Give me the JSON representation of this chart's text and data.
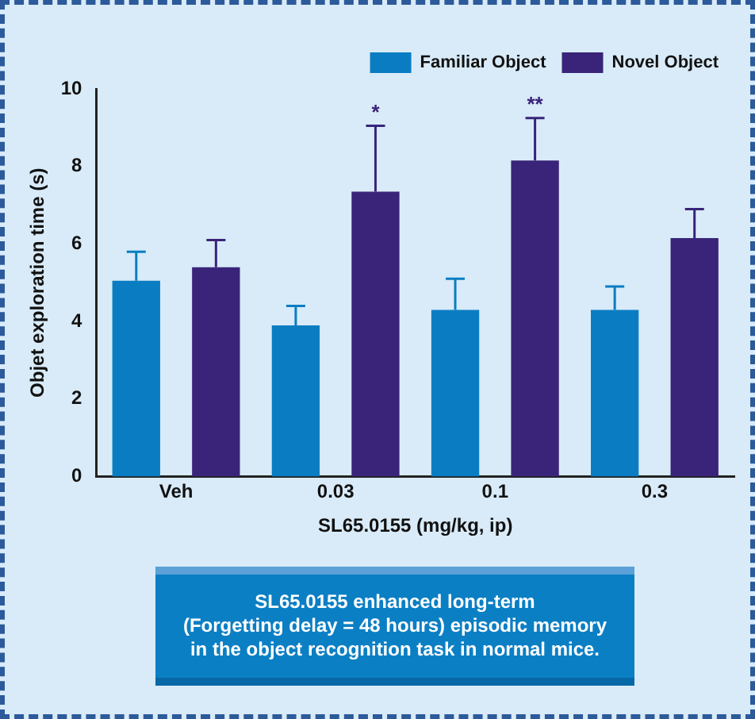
{
  "chart_data": {
    "type": "bar",
    "xlabel": "SL65.0155 (mg/kg, ip)",
    "ylabel": "Objet exploration time (s)",
    "categories": [
      "Veh",
      "0.03",
      "0.1",
      "0.3"
    ],
    "series": [
      {
        "name": "Familiar Object",
        "color": "#0a7dc2",
        "values": [
          5.05,
          3.9,
          4.3,
          4.3
        ],
        "errors": [
          [
            5.05,
            5.8
          ],
          [
            3.9,
            4.4
          ],
          [
            4.3,
            5.1
          ],
          [
            4.3,
            4.9
          ]
        ]
      },
      {
        "name": "Novel Object",
        "color": "#3a2479",
        "values": [
          5.4,
          7.35,
          8.15,
          6.15
        ],
        "errors": [
          [
            5.4,
            6.1
          ],
          [
            7.35,
            9.05
          ],
          [
            8.15,
            9.25
          ],
          [
            6.15,
            6.9
          ]
        ]
      }
    ],
    "ylim": [
      0,
      10
    ],
    "yticks": [
      0,
      2,
      4,
      6,
      8,
      10
    ],
    "grid": false,
    "legend": "top right",
    "annotations": [
      "*",
      "**",
      "SL65.0155 enhanced long-term\n(Forgetting delay = 48 hours) episodic memory\nin the object recognition task in normal mice."
    ]
  }
}
